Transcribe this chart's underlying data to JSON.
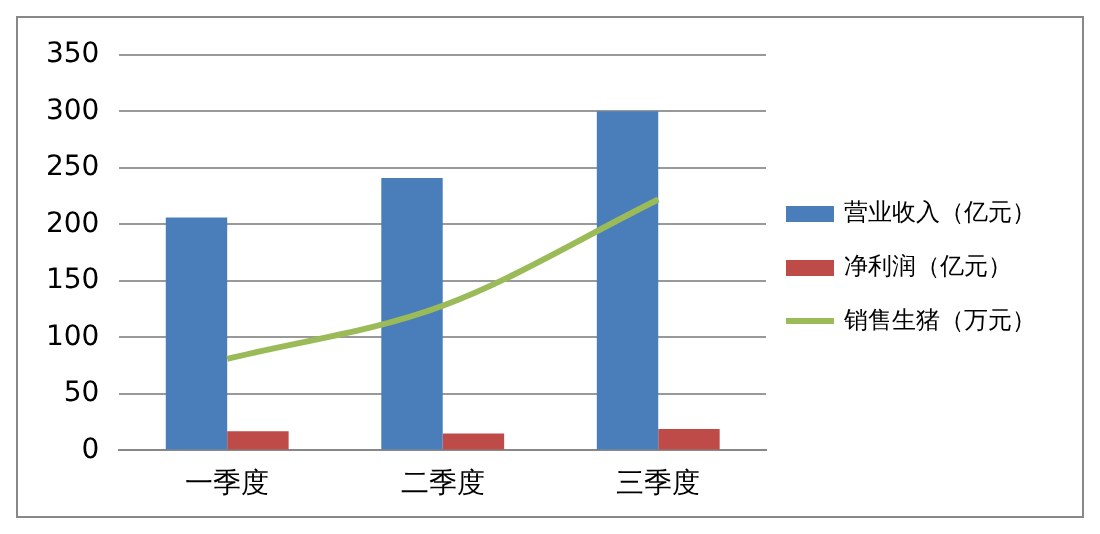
{
  "chart_data": {
    "type": "bar",
    "categories": [
      "一季度",
      "二季度",
      "三季度"
    ],
    "series": [
      {
        "name": "营业收入（亿元）",
        "color": "#4a7ebb",
        "values": [
          206,
          241,
          300
        ]
      },
      {
        "name": "净利润（亿元）",
        "color": "#be4b48",
        "values": [
          17,
          15,
          19
        ]
      },
      {
        "name": "销售生猪（万元）",
        "color": "#9bbb59",
        "type": "line",
        "values": [
          81,
          128,
          222
        ]
      }
    ],
    "ylim": [
      0,
      350
    ],
    "yticks": [
      0,
      50,
      100,
      150,
      200,
      250,
      300,
      350
    ],
    "grid": "y",
    "legend": "right",
    "marker": "none"
  }
}
